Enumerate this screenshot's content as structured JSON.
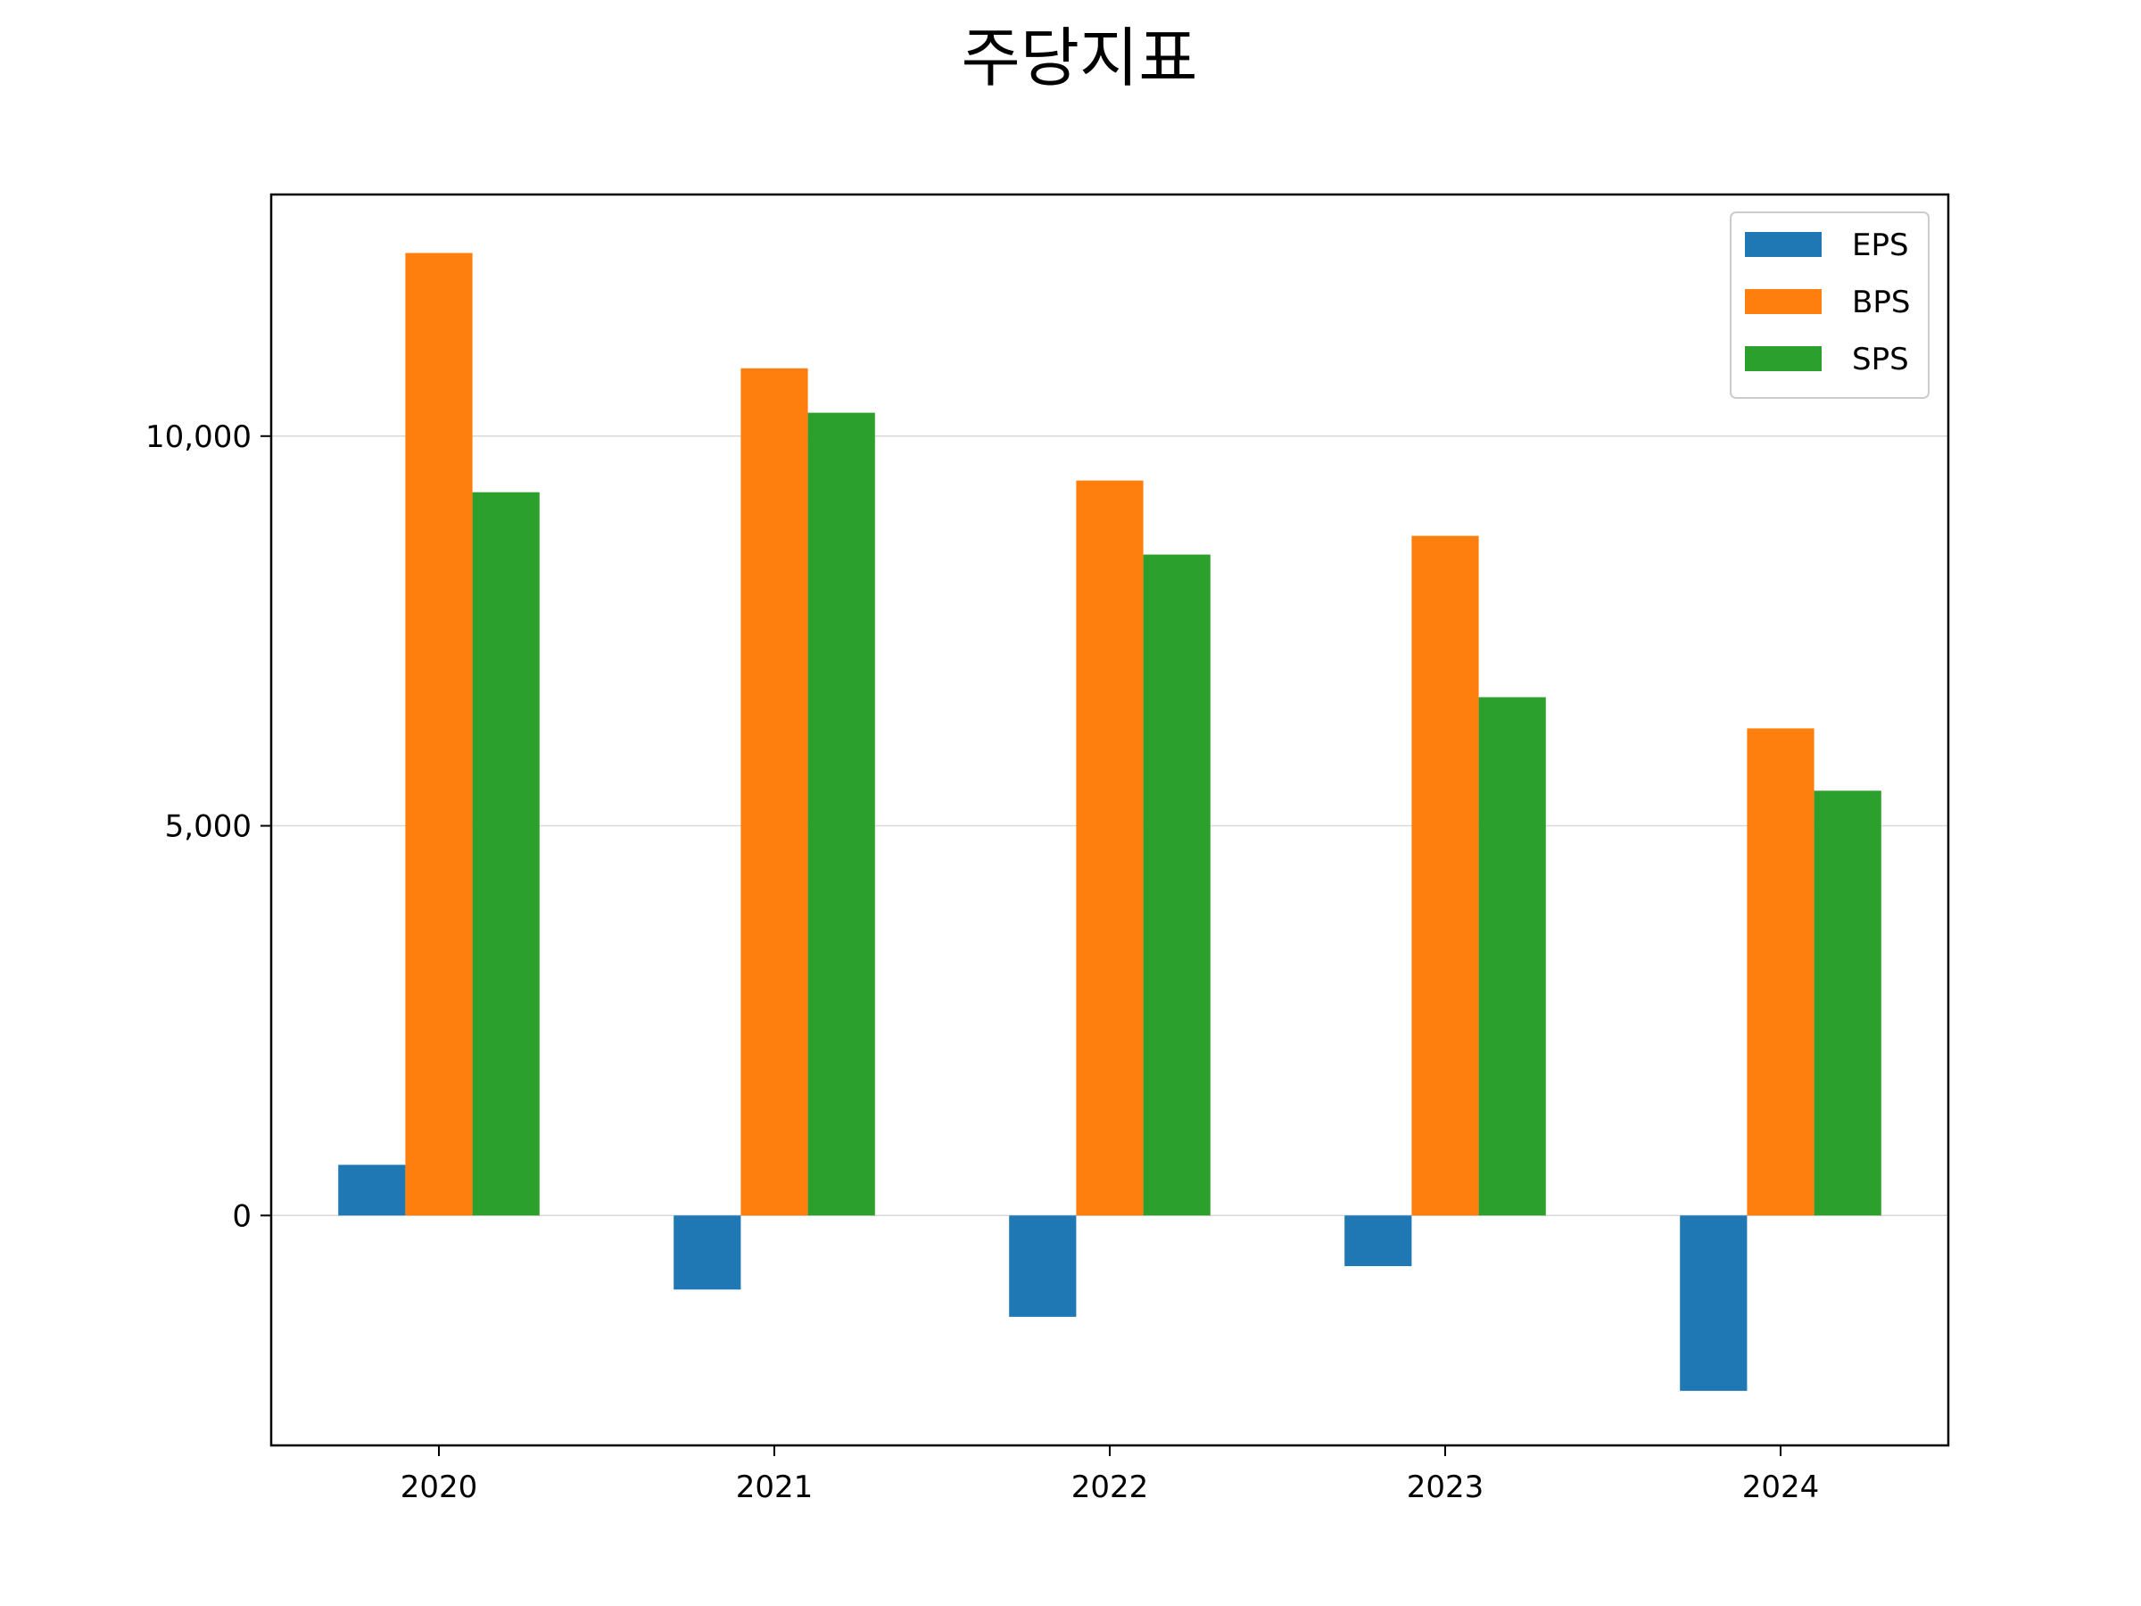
{
  "chart_data": {
    "type": "bar",
    "title": "주당지표",
    "xlabel": "",
    "ylabel": "",
    "categories": [
      "2020",
      "2021",
      "2022",
      "2023",
      "2024"
    ],
    "series": [
      {
        "name": "EPS",
        "color": "#1f77b4",
        "values": [
          650,
          -950,
          -1300,
          -650,
          -2250
        ]
      },
      {
        "name": "BPS",
        "color": "#ff7f0e",
        "values": [
          12350,
          10870,
          9430,
          8720,
          6250
        ]
      },
      {
        "name": "SPS",
        "color": "#2ca02c",
        "values": [
          9280,
          10300,
          8480,
          6650,
          5450
        ]
      }
    ],
    "yticks": [
      0,
      5000,
      10000
    ],
    "ytick_labels": [
      "0",
      "5,000",
      "10,000"
    ],
    "ylim": [
      -2950,
      13100
    ],
    "grid": "y",
    "legend": "top-right"
  }
}
